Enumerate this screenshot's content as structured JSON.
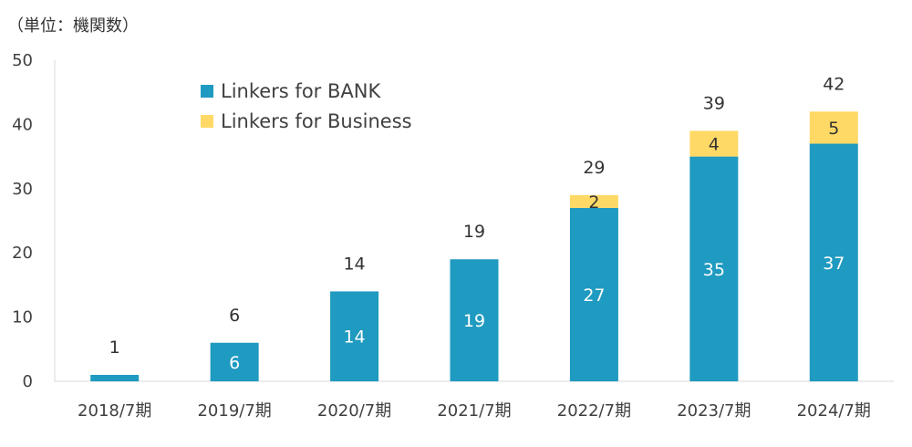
{
  "chart_data": {
    "type": "bar",
    "stacked": true,
    "unit_label": "（単位：機関数）",
    "categories": [
      "2018/7期",
      "2019/7期",
      "2020/7期",
      "2021/7期",
      "2022/7期",
      "2023/7期",
      "2024/7期"
    ],
    "series": [
      {
        "name": "Linkers for BANK",
        "color": "#1f9ac0",
        "label_color": "#ffffff",
        "values": [
          1,
          6,
          14,
          19,
          27,
          35,
          37
        ]
      },
      {
        "name": "Linkers for Business",
        "color": "#ffd966",
        "label_color": "#333333",
        "values": [
          0,
          0,
          0,
          0,
          2,
          4,
          5
        ]
      }
    ],
    "totals": [
      1,
      6,
      14,
      19,
      29,
      39,
      42
    ],
    "ylim": [
      0,
      50
    ],
    "yticks": [
      0,
      10,
      20,
      30,
      40,
      50
    ],
    "grid": false,
    "legend": "top-left"
  }
}
